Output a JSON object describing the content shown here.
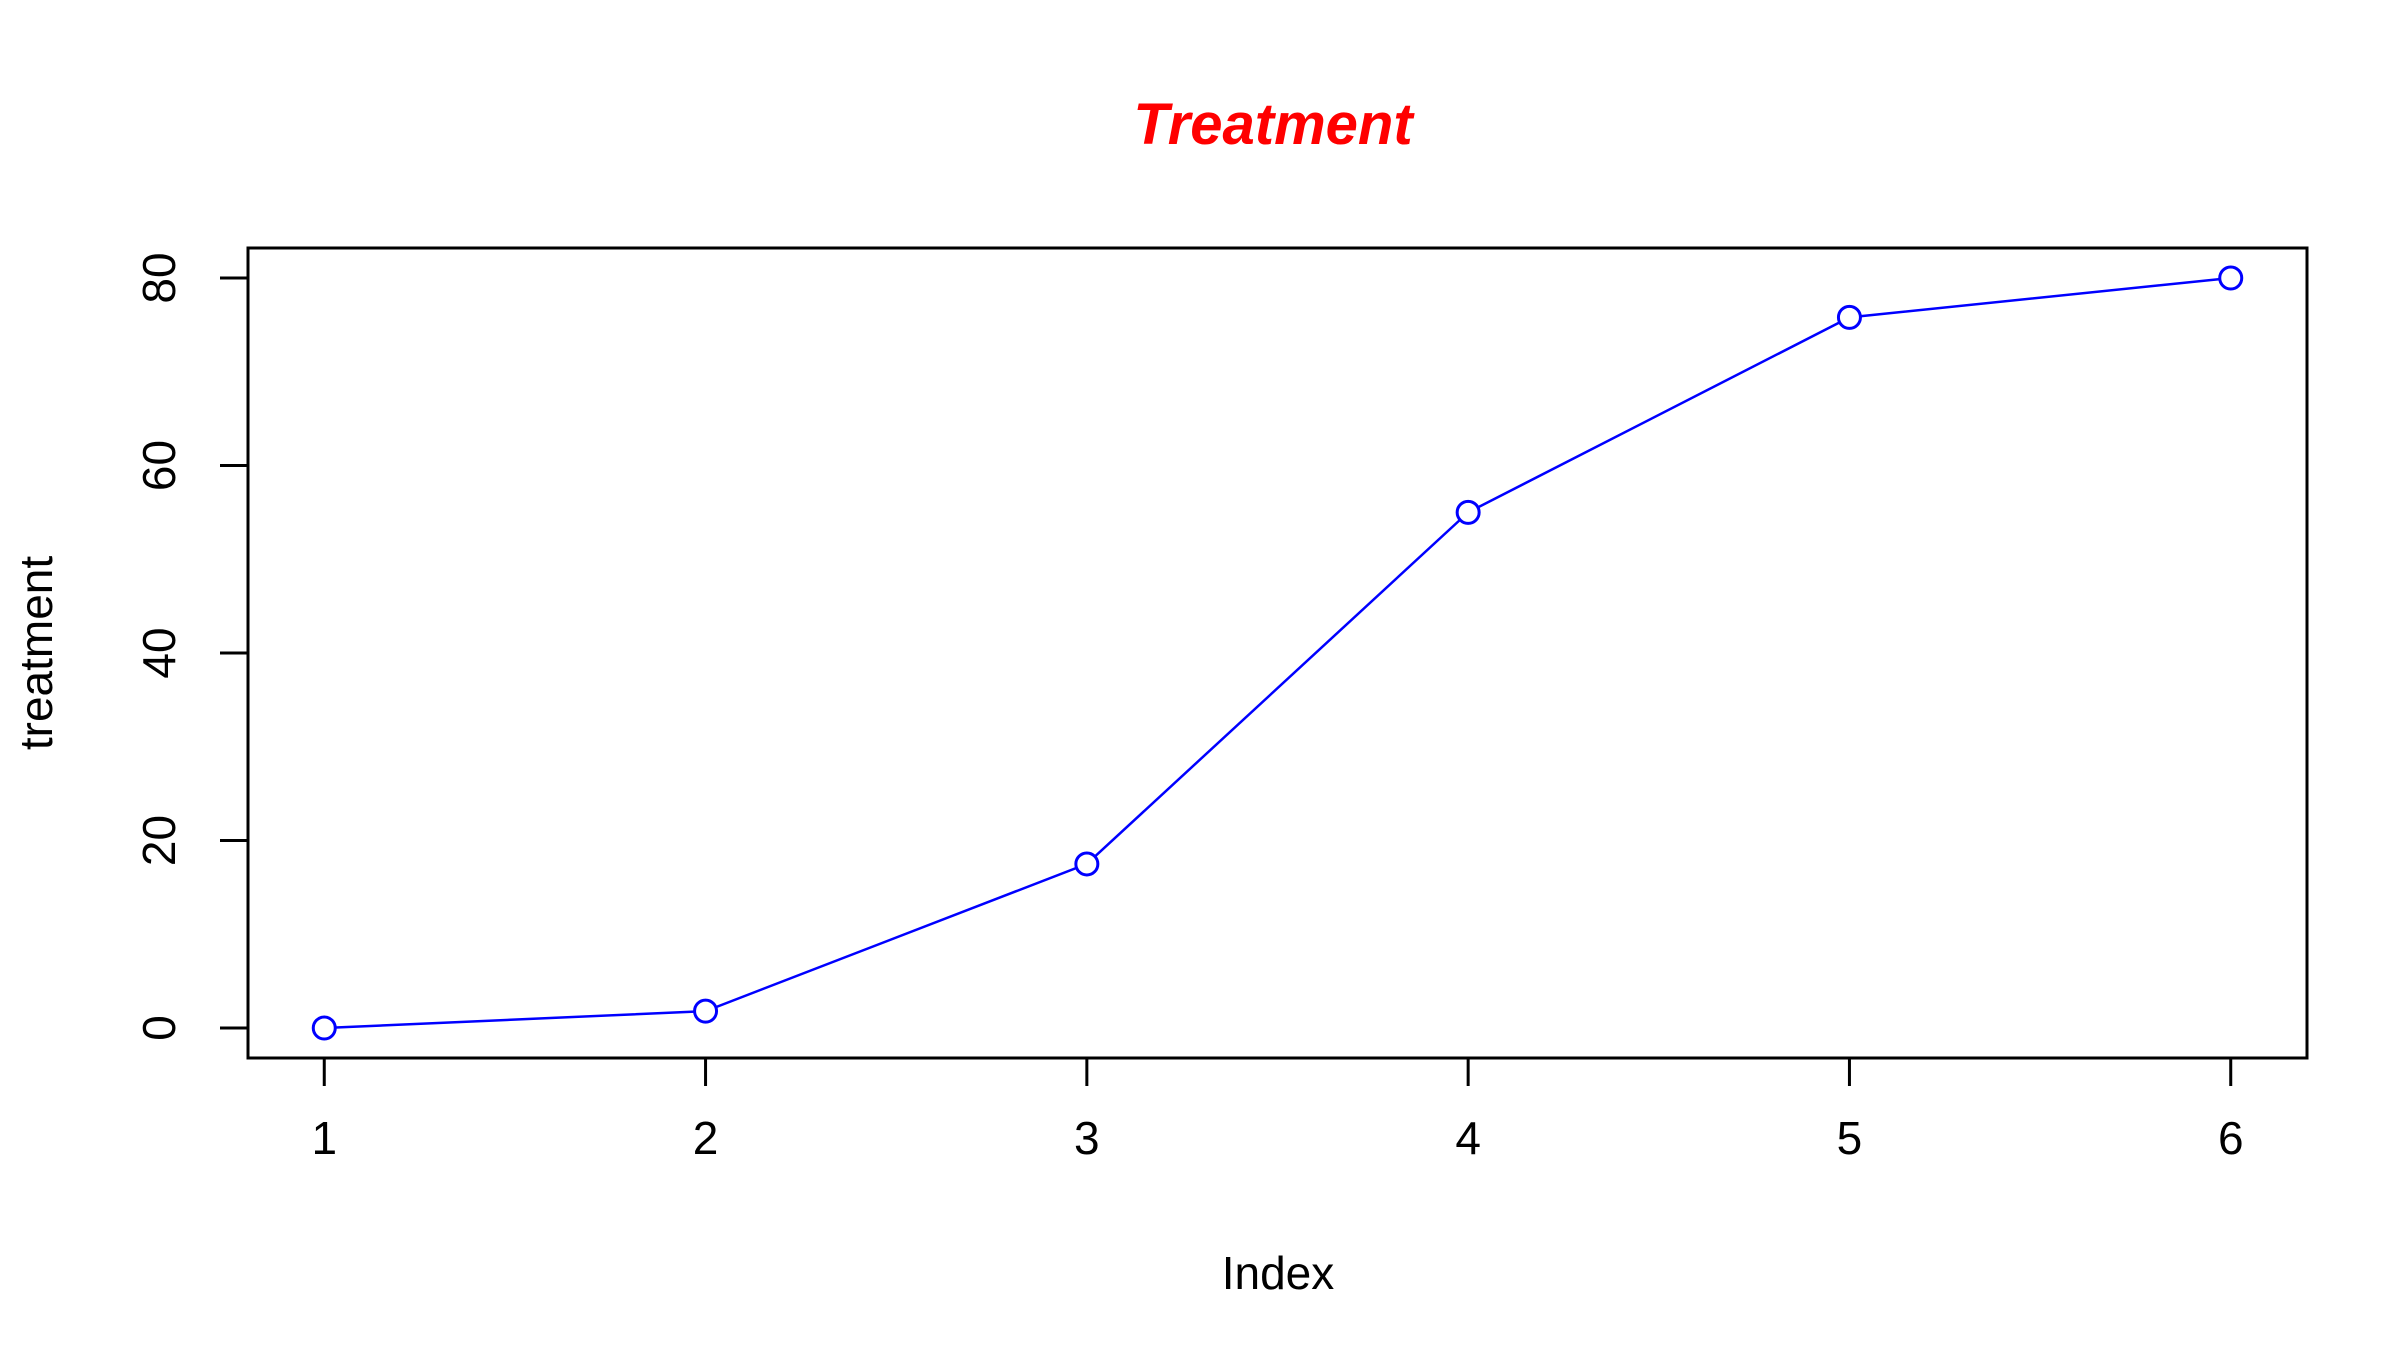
{
  "chart_data": {
    "type": "line",
    "title": "Treatment",
    "xlabel": "Index",
    "ylabel": "treatment",
    "x": [
      1,
      2,
      3,
      4,
      5,
      6
    ],
    "series": [
      {
        "values": [
          0,
          1.8,
          17.5,
          55,
          75.8,
          80
        ]
      }
    ],
    "xticks": [
      1,
      2,
      3,
      4,
      5,
      6
    ],
    "yticks": [
      0,
      20,
      40,
      60,
      80
    ],
    "xlim": [
      0.8,
      6.2
    ],
    "ylim": [
      -3.2,
      83.2
    ],
    "grid": false,
    "legend": "none",
    "marker": "open-circle",
    "colors": {
      "title": "#FF0000",
      "series": "#0000FF",
      "axes": "#000000"
    }
  }
}
